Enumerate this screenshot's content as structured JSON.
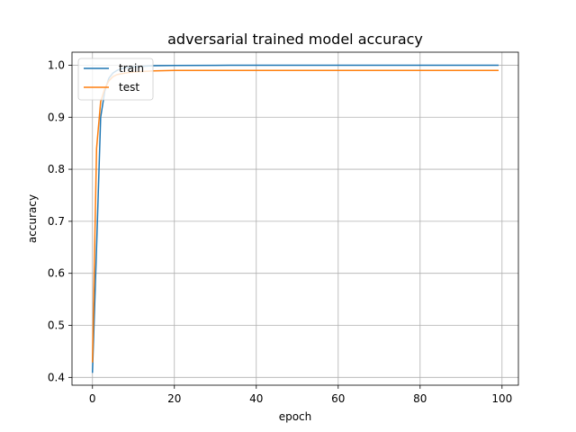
{
  "chart_data": {
    "type": "line",
    "title": "adversarial trained model accuracy",
    "xlabel": "epoch",
    "ylabel": "accuracy",
    "xlim": [
      -5,
      104
    ],
    "ylim": [
      0.385,
      1.025
    ],
    "xticks": [
      0,
      20,
      40,
      60,
      80,
      100
    ],
    "yticks": [
      0.4,
      0.5,
      0.6,
      0.7,
      0.8,
      0.9,
      1.0
    ],
    "xtick_labels": [
      "0",
      "20",
      "40",
      "60",
      "80",
      "100"
    ],
    "ytick_labels": [
      "0.4",
      "0.5",
      "0.6",
      "0.7",
      "0.8",
      "0.9",
      "1.0"
    ],
    "grid": true,
    "legend_position": "upper-left",
    "series": [
      {
        "name": "train",
        "color": "#1f77b4",
        "x": [
          0,
          1,
          2,
          3,
          4,
          5,
          6,
          7,
          8,
          10,
          15,
          20,
          30,
          50,
          70,
          99
        ],
        "y": [
          0.41,
          0.65,
          0.9,
          0.95,
          0.975,
          0.985,
          0.99,
          0.993,
          0.995,
          0.997,
          0.999,
          0.9995,
          0.9998,
          0.9999,
          0.9999,
          0.9999
        ]
      },
      {
        "name": "test",
        "color": "#ff7f0e",
        "x": [
          0,
          1,
          2,
          3,
          4,
          5,
          6,
          8,
          10,
          15,
          20,
          50,
          99
        ],
        "y": [
          0.43,
          0.84,
          0.93,
          0.955,
          0.97,
          0.978,
          0.982,
          0.985,
          0.987,
          0.989,
          0.99,
          0.99,
          0.99
        ]
      }
    ]
  }
}
